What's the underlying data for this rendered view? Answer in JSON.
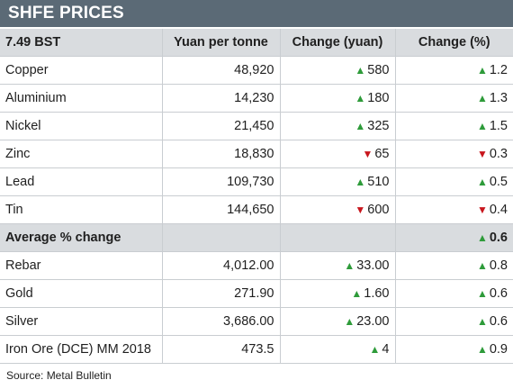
{
  "title": "SHFE PRICES",
  "header": {
    "time": "7.49 BST",
    "col_price": "Yuan per tonne",
    "col_change": "Change (yuan)",
    "col_pct": "Change (%)"
  },
  "rows_top": [
    {
      "name": "Copper",
      "price": "48,920",
      "change": "580",
      "change_dir": "up",
      "pct": "1.2",
      "pct_dir": "up"
    },
    {
      "name": "Aluminium",
      "price": "14,230",
      "change": "180",
      "change_dir": "up",
      "pct": "1.3",
      "pct_dir": "up"
    },
    {
      "name": "Nickel",
      "price": "21,450",
      "change": "325",
      "change_dir": "up",
      "pct": "1.5",
      "pct_dir": "up"
    },
    {
      "name": "Zinc",
      "price": "18,830",
      "change": "65",
      "change_dir": "down",
      "pct": "0.3",
      "pct_dir": "down"
    },
    {
      "name": "Lead",
      "price": "109,730",
      "change": "510",
      "change_dir": "up",
      "pct": "0.5",
      "pct_dir": "up"
    },
    {
      "name": "Tin",
      "price": "144,650",
      "change": "600",
      "change_dir": "down",
      "pct": "0.4",
      "pct_dir": "down"
    }
  ],
  "average": {
    "label": "Average % change",
    "pct": "0.6",
    "pct_dir": "up"
  },
  "rows_bottom": [
    {
      "name": "Rebar",
      "price": "4,012.00",
      "change": "33.00",
      "change_dir": "up",
      "pct": "0.8",
      "pct_dir": "up"
    },
    {
      "name": "Gold",
      "price": "271.90",
      "change": "1.60",
      "change_dir": "up",
      "pct": "0.6",
      "pct_dir": "up"
    },
    {
      "name": "Silver",
      "price": "3,686.00",
      "change": "23.00",
      "change_dir": "up",
      "pct": "0.6",
      "pct_dir": "up"
    },
    {
      "name": "Iron Ore (DCE) MM 2018",
      "price": "473.5",
      "change": "4",
      "change_dir": "up",
      "pct": "0.9",
      "pct_dir": "up"
    }
  ],
  "icons": {
    "up": "up-triangle-icon",
    "down": "down-triangle-icon"
  },
  "colors": {
    "up": "#2e9b3a",
    "down": "#c8161d",
    "title_bg": "#5b6a76",
    "header_bg": "#d9dcdf"
  },
  "source": "Source: Metal Bulletin"
}
